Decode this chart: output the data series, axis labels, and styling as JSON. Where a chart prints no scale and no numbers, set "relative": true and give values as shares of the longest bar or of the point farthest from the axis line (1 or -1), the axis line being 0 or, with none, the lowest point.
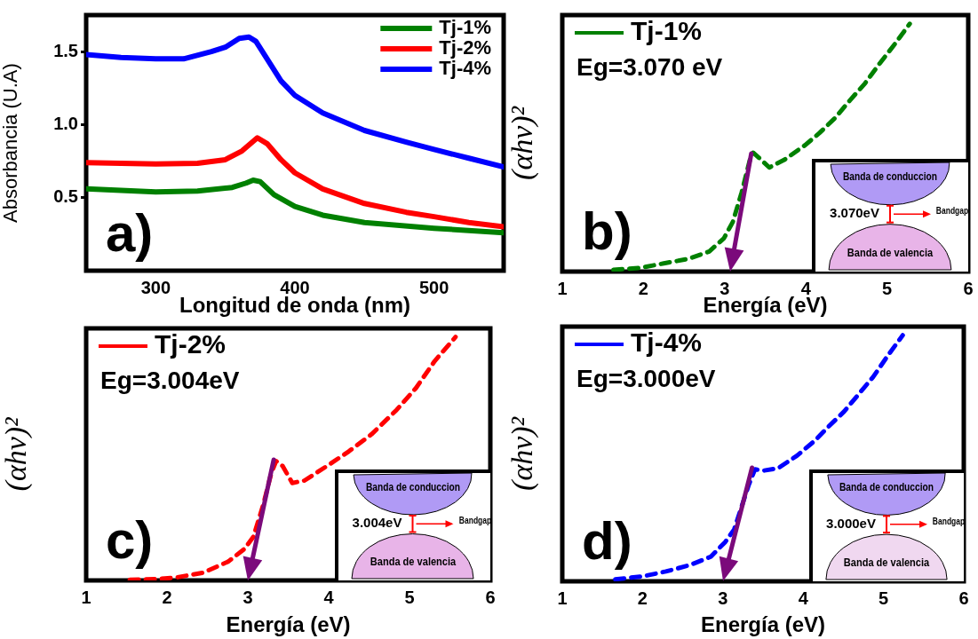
{
  "chart_data": [
    {
      "type": "line",
      "xlabel": "Longitud de onda (nm)",
      "ylabel": "Absorbancia (U.A)",
      "xlim": [
        250,
        550
      ],
      "xticks": [
        300,
        400,
        500
      ],
      "ylim": [
        0,
        1.75
      ],
      "yticks": [
        {
          "value": 0.5,
          "label": "0.5"
        },
        {
          "value": 1,
          "label": "1.0"
        },
        {
          "value": 1.5,
          "label": "1.5"
        }
      ],
      "legend": "top right",
      "marker": "none",
      "line_style": "solid",
      "annotations": [
        "a)"
      ],
      "series": [
        {
          "name": "Tj-1%",
          "color": "#008000",
          "x": [
            250,
            275,
            300,
            330,
            355,
            365,
            370,
            375,
            385,
            400,
            420,
            450,
            500,
            550
          ],
          "values": [
            0.56,
            0.55,
            0.54,
            0.545,
            0.57,
            0.6,
            0.62,
            0.61,
            0.52,
            0.44,
            0.38,
            0.33,
            0.29,
            0.26
          ]
        },
        {
          "name": "Tj-2%",
          "color": "#ff0000",
          "x": [
            250,
            275,
            300,
            330,
            350,
            362,
            373,
            380,
            390,
            400,
            420,
            450,
            480,
            500,
            525,
            550
          ],
          "values": [
            0.74,
            0.735,
            0.73,
            0.735,
            0.76,
            0.82,
            0.91,
            0.87,
            0.76,
            0.67,
            0.56,
            0.46,
            0.4,
            0.37,
            0.33,
            0.3
          ]
        },
        {
          "name": "Tj-4%",
          "color": "#0000ff",
          "x": [
            250,
            275,
            300,
            320,
            340,
            350,
            360,
            367,
            372,
            380,
            390,
            400,
            420,
            450,
            480,
            500,
            525,
            550
          ],
          "values": [
            1.48,
            1.46,
            1.45,
            1.45,
            1.5,
            1.53,
            1.59,
            1.6,
            1.57,
            1.45,
            1.3,
            1.2,
            1.08,
            0.96,
            0.88,
            0.83,
            0.77,
            0.71
          ]
        }
      ]
    },
    {
      "type": "line",
      "relative": true,
      "xlabel": "Energía (eV)",
      "ylabel": "(αhν)²",
      "xlim": [
        1,
        6
      ],
      "xticks": [
        1,
        2,
        3,
        4,
        5,
        6
      ],
      "legend": "top left",
      "marker": "none",
      "line_style": "dashed",
      "annotations": [
        "b)",
        "Eg=3.070 eV",
        "Banda de conduccion",
        "3.070eV",
        "Bandgap",
        "Banda de valencia"
      ],
      "series": [
        {
          "name": "Tj-1%",
          "color": "#008000",
          "x": [
            1.63,
            1.96,
            2.25,
            2.55,
            2.81,
            2.99,
            3.1,
            3.21,
            3.31,
            3.35,
            3.42,
            3.55,
            3.73,
            3.99,
            4.17,
            4.36,
            4.54,
            4.73,
            4.91,
            5.1,
            5.28
          ],
          "values": [
            0.007,
            0.015,
            0.033,
            0.051,
            0.081,
            0.134,
            0.2,
            0.32,
            0.45,
            0.48,
            0.46,
            0.42,
            0.45,
            0.51,
            0.56,
            0.62,
            0.69,
            0.76,
            0.84,
            0.92,
            1
          ]
        }
      ]
    },
    {
      "type": "line",
      "relative": true,
      "xlabel": "Energía (eV)",
      "ylabel": "(αhν)²",
      "xlim": [
        1,
        6
      ],
      "xticks": [
        1,
        2,
        3,
        4,
        5,
        6
      ],
      "legend": "top left",
      "marker": "none",
      "line_style": "dashed",
      "annotations": [
        "c)",
        "Eg=3.004eV",
        "Banda de conduccion",
        "3.004eV",
        "Bandgap",
        "Banda de valencia"
      ],
      "series": [
        {
          "name": "Tj-2%",
          "color": "#ff0000",
          "x": [
            1.54,
            1.9,
            2.13,
            2.45,
            2.76,
            2.96,
            3.07,
            3.19,
            3.29,
            3.35,
            3.43,
            3.55,
            3.7,
            3.98,
            4.25,
            4.53,
            4.84,
            5.08,
            5.31,
            5.57
          ],
          "values": [
            0.003,
            0.006,
            0.013,
            0.032,
            0.078,
            0.13,
            0.18,
            0.31,
            0.44,
            0.49,
            0.47,
            0.4,
            0.41,
            0.47,
            0.53,
            0.6,
            0.7,
            0.79,
            0.9,
            1
          ]
        }
      ]
    },
    {
      "type": "line",
      "relative": true,
      "xlabel": "Energía (eV)",
      "ylabel": "(αhν)²",
      "xlim": [
        1,
        6
      ],
      "xticks": [
        1,
        2,
        3,
        4,
        5,
        6
      ],
      "legend": "top left",
      "marker": "none",
      "line_style": "dashed",
      "annotations": [
        "d)",
        "Eg=3.000eV",
        "Banda de conduccion",
        "3.000eV",
        "Bandgap",
        "Banda de valencia"
      ],
      "series": [
        {
          "name": "Tj-4%",
          "color": "#0000ff",
          "x": [
            1.66,
            2.0,
            2.29,
            2.59,
            2.85,
            3.03,
            3.14,
            3.25,
            3.32,
            3.4,
            3.51,
            3.69,
            3.92,
            4.14,
            4.32,
            4.51,
            4.69,
            4.87,
            5.06,
            5.24
          ],
          "values": [
            0.008,
            0.02,
            0.04,
            0.066,
            0.1,
            0.16,
            0.21,
            0.32,
            0.39,
            0.455,
            0.45,
            0.46,
            0.51,
            0.57,
            0.63,
            0.69,
            0.76,
            0.83,
            0.92,
            1
          ]
        }
      ]
    }
  ]
}
